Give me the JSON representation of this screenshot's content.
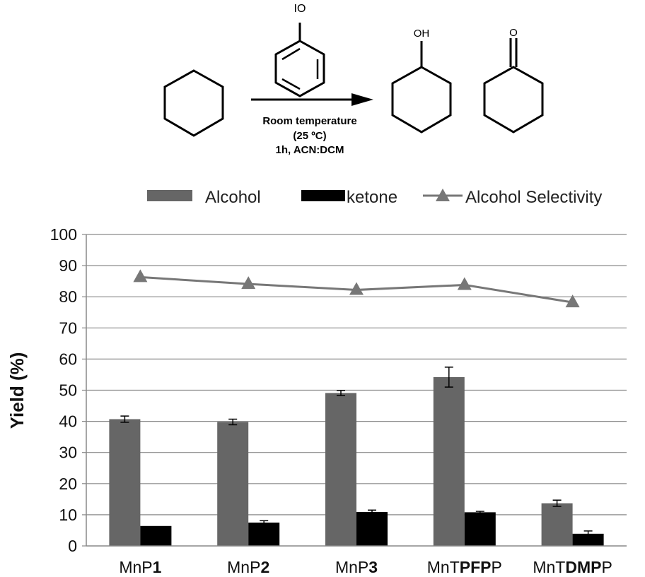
{
  "scheme": {
    "reagent_label": "IO",
    "oh_label": "OH",
    "o_label": "O",
    "conditions": [
      "Room temperature",
      "(25 ºC)",
      "1h, ACN:DCM"
    ]
  },
  "chart_data": {
    "type": "bar",
    "categories": [
      {
        "plain": "MnP",
        "bold": "1",
        "tail": ""
      },
      {
        "plain": "MnP",
        "bold": "2",
        "tail": ""
      },
      {
        "plain": "MnP",
        "bold": "3",
        "tail": ""
      },
      {
        "plain": "MnT",
        "bold": "PFP",
        "tail": "P"
      },
      {
        "plain": "MnT",
        "bold": "DMP",
        "tail": "P"
      }
    ],
    "series": [
      {
        "name": "Alcohol",
        "kind": "bar",
        "color": "#666666",
        "values": [
          40.7,
          39.8,
          49.1,
          54.2,
          13.7
        ],
        "errors": [
          1.0,
          0.9,
          0.8,
          3.2,
          1.0
        ]
      },
      {
        "name": "ketone",
        "kind": "bar",
        "color": "#000000",
        "values": [
          6.4,
          7.5,
          10.9,
          10.8,
          3.9
        ],
        "errors": [
          0.0,
          0.6,
          0.6,
          0.3,
          0.9
        ]
      },
      {
        "name": "Alcohol Selectivity",
        "kind": "line",
        "color": "#777777",
        "marker": "triangle",
        "values": [
          86.3,
          84.1,
          82.2,
          83.8,
          78.2
        ]
      }
    ],
    "ylabel": "Yield (%)",
    "ylim": [
      0,
      100
    ],
    "yticks": [
      0,
      10,
      20,
      30,
      40,
      50,
      60,
      70,
      80,
      90,
      100
    ],
    "grid": true,
    "legend": "top"
  }
}
